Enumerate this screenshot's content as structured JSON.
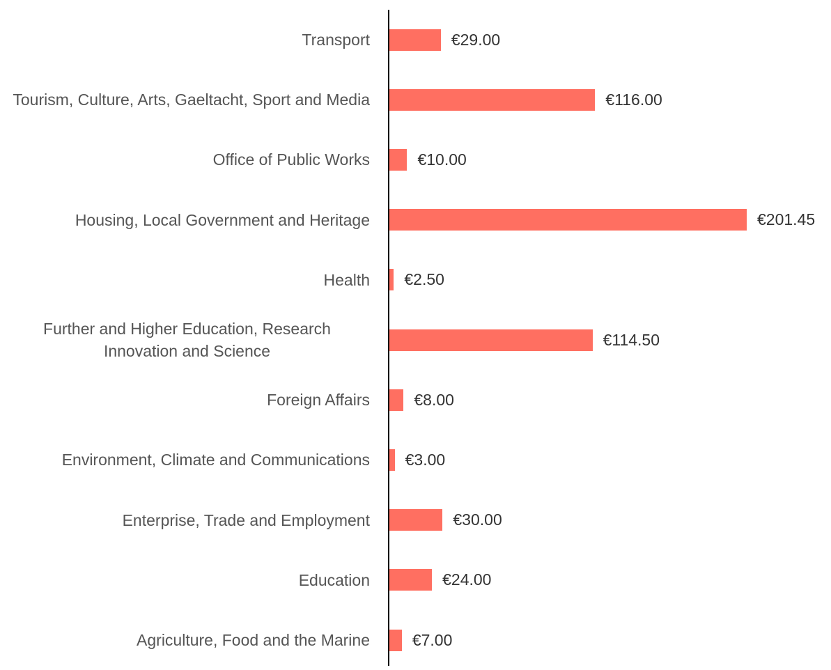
{
  "chart_data": {
    "type": "bar",
    "orientation": "horizontal",
    "color": "#ff6f61",
    "categories": [
      "Transport",
      "Tourism, Culture, Arts, Gaeltacht, Sport and Media",
      "Office of Public Works",
      "Housing, Local Government and Heritage",
      "Health",
      "Further and Higher Education, Research Innovation and Science",
      "Foreign Affairs",
      "Environment, Climate and Communications",
      "Enterprise, Trade and Employment",
      "Education",
      "Agriculture, Food and the Marine"
    ],
    "values": [
      29,
      116,
      10,
      201.45,
      2.5,
      114.5,
      8,
      3,
      30,
      24,
      7
    ],
    "value_labels": [
      "€29.00",
      "€116.00",
      "€10.00",
      "€201.45",
      "€2.50",
      "€114.50",
      "€8.00",
      "€3.00",
      "€30.00",
      "€24.00",
      "€7.00"
    ]
  }
}
